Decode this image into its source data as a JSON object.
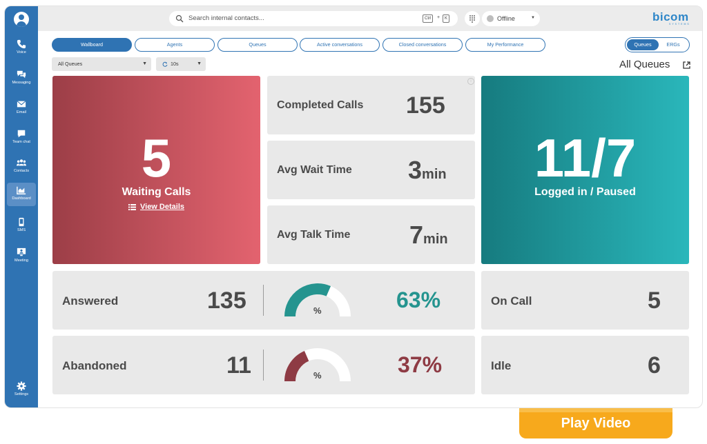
{
  "sidebar": {
    "items": [
      {
        "label": "Voice",
        "icon": "phone-icon"
      },
      {
        "label": "Messaging",
        "icon": "chat-bubbles-icon"
      },
      {
        "label": "Email",
        "icon": "envelope-icon"
      },
      {
        "label": "Team chat",
        "icon": "chat-bubble-icon"
      },
      {
        "label": "Contacts",
        "icon": "people-icon"
      },
      {
        "label": "Dashboard",
        "icon": "dashboard-chart-icon",
        "active": true
      },
      {
        "label": "SMS",
        "icon": "mobile-phone-icon"
      },
      {
        "label": "Meeting",
        "icon": "monitor-user-icon"
      },
      {
        "label": "Settings",
        "icon": "gear-icon"
      }
    ]
  },
  "topbar": {
    "search_placeholder": "Search internal contacts...",
    "shortcut_ctrl": "Ctrl",
    "shortcut_plus": "+",
    "shortcut_key": "K",
    "status": "Offline",
    "logo": "bicom",
    "logo_sub": "SYSTEMS"
  },
  "tabs": [
    {
      "label": "Wallboard",
      "active": true
    },
    {
      "label": "Agents"
    },
    {
      "label": "Queues"
    },
    {
      "label": "Active conversations"
    },
    {
      "label": "Closed conversations"
    },
    {
      "label": "My Performance"
    }
  ],
  "toggle": {
    "queues": "Queues",
    "ergs": "ERGs",
    "selected": "Queues"
  },
  "filters": {
    "queue_select": "All Queues",
    "refresh_select": "10s"
  },
  "heading": "All Queues",
  "waiting": {
    "value": "5",
    "label": "Waiting Calls",
    "link": "View Details"
  },
  "completed": {
    "label": "Completed Calls",
    "value": "155"
  },
  "avg_wait": {
    "label": "Avg Wait Time",
    "value": "3",
    "unit": "min"
  },
  "avg_talk": {
    "label": "Avg Talk Time",
    "value": "7",
    "unit": "min"
  },
  "logged_in": {
    "value": "11/7",
    "label": "Logged in / Paused"
  },
  "answered": {
    "label": "Answered",
    "value": "135",
    "gauge_symbol": "%",
    "percent_text": "63%",
    "fraction": 0.63,
    "color": "#25948f"
  },
  "abandoned": {
    "label": "Abandoned",
    "value": "11",
    "gauge_symbol": "%",
    "percent_text": "37%",
    "fraction": 0.37,
    "color": "#8e3b44"
  },
  "on_call": {
    "label": "On Call",
    "value": "5"
  },
  "idle": {
    "label": "Idle",
    "value": "6"
  },
  "play_video": "Play Video",
  "colors": {
    "sidebar": "#2f73b3",
    "accent": "#2f73b3",
    "play": "#f7a91c"
  }
}
